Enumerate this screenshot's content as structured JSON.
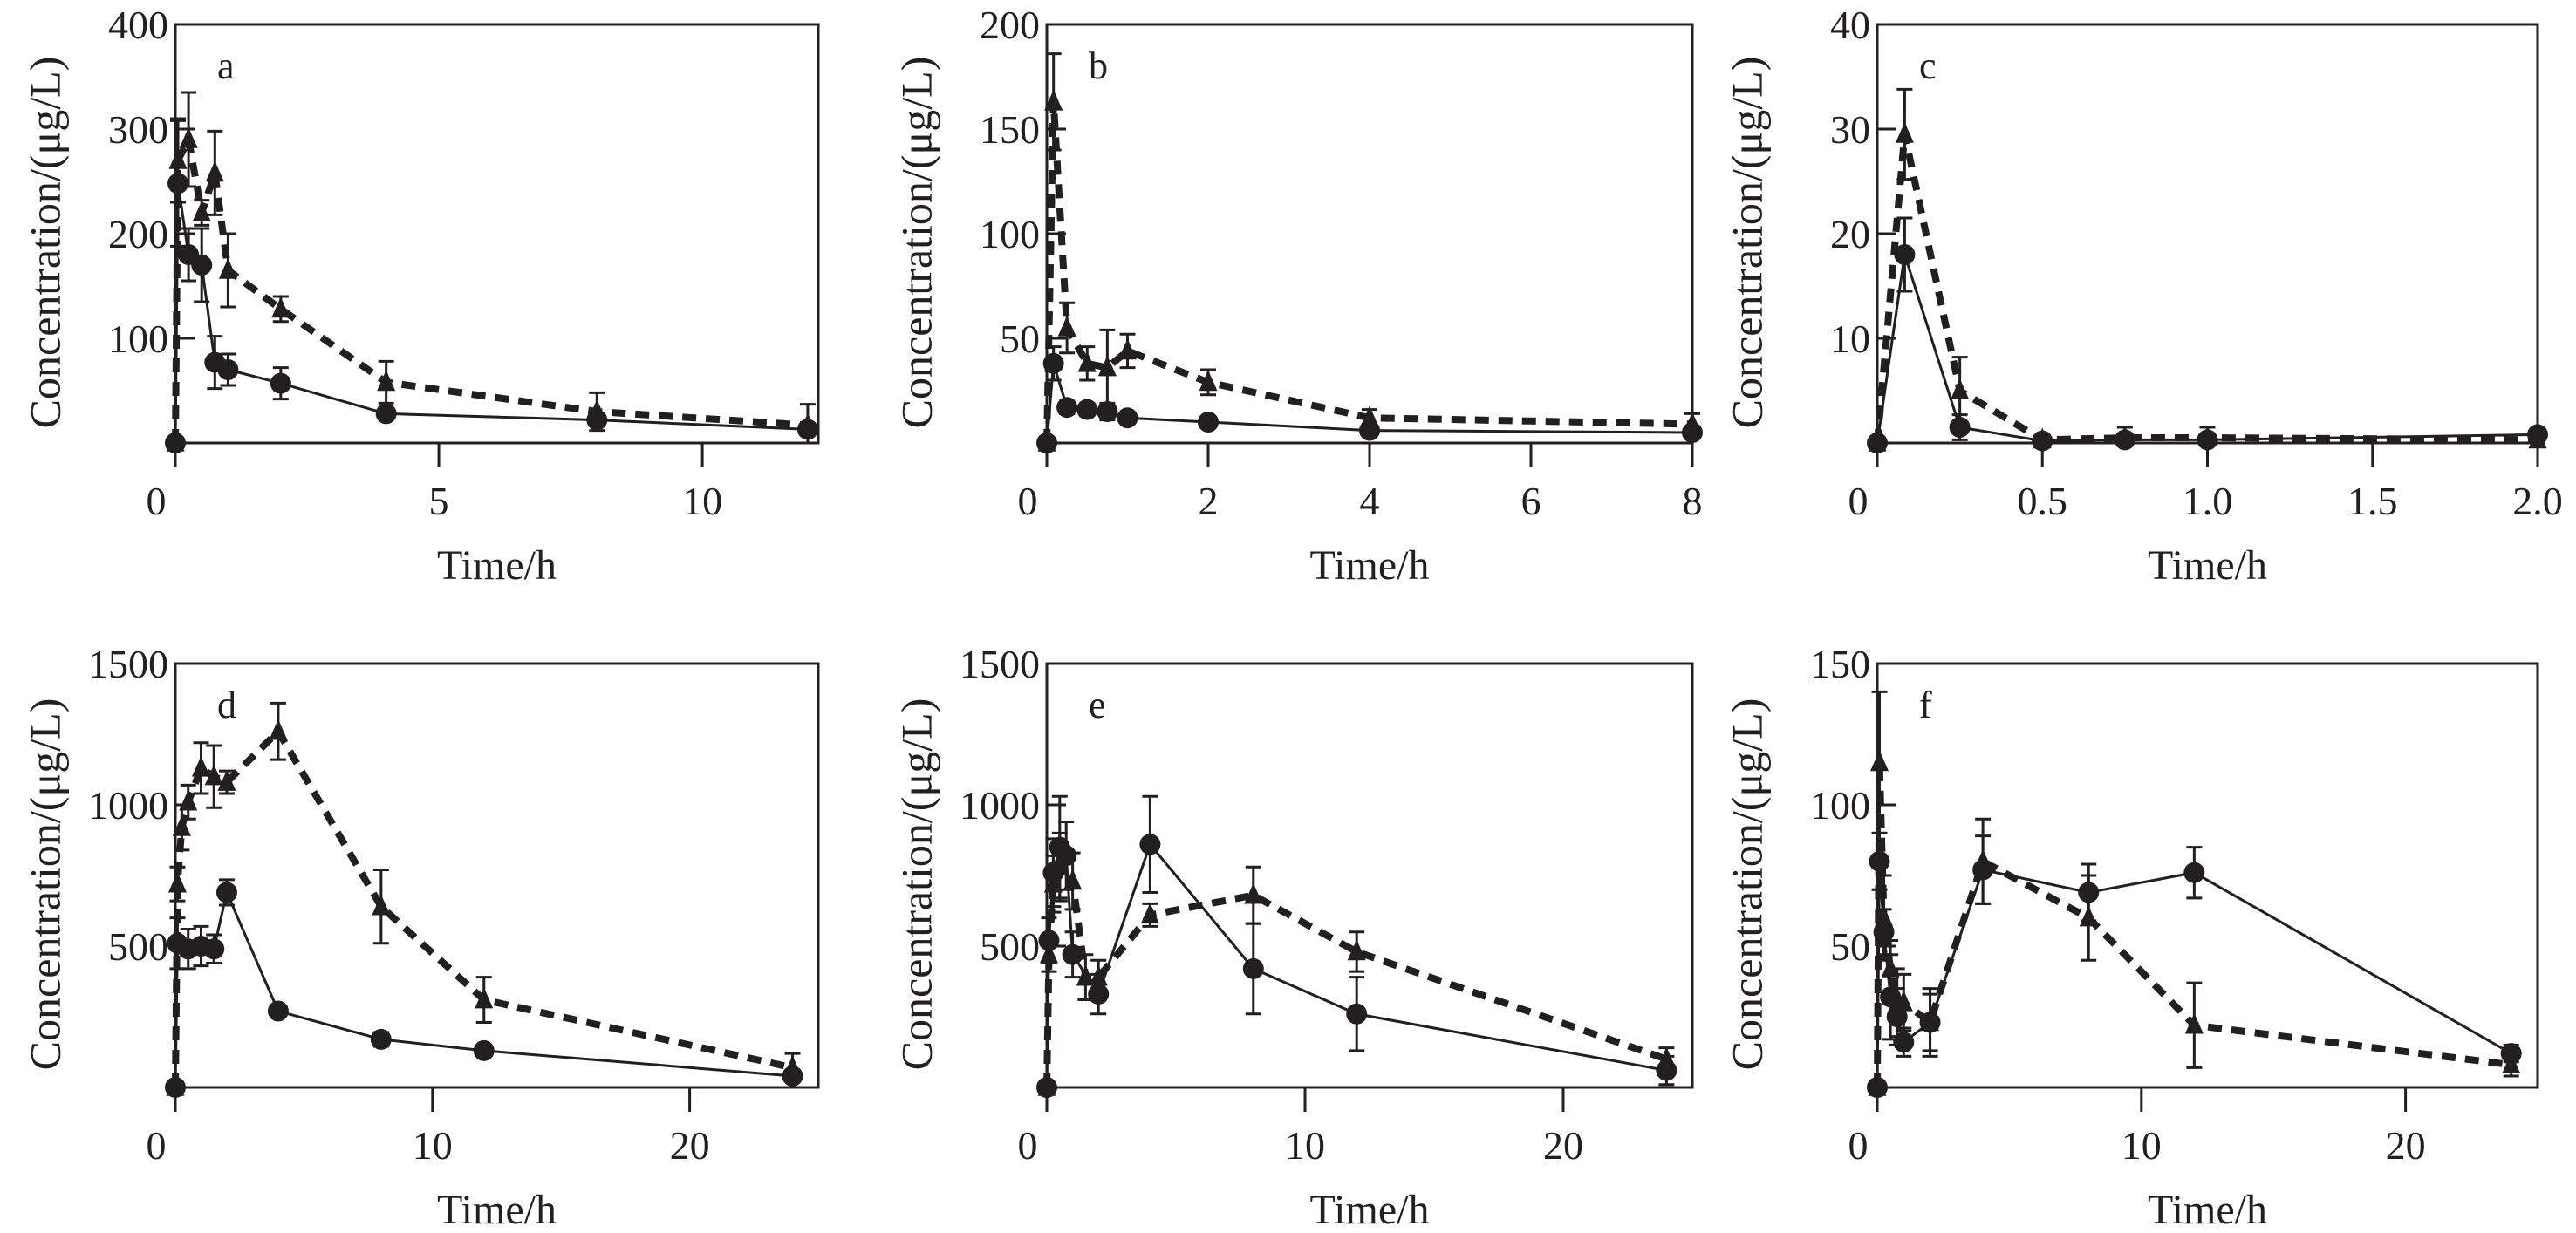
{
  "chart_data": [
    {
      "type": "line",
      "panel": "a",
      "xlabel": "Time/h",
      "ylabel": "Concentration/(μg/L)",
      "xlim": [
        0,
        12.2
      ],
      "ylim": [
        0,
        400
      ],
      "xticks": [
        "0",
        "5",
        "10"
      ],
      "xtick_values": [
        0,
        5,
        10
      ],
      "yticks": [
        "100",
        "200",
        "300",
        "400"
      ],
      "ytick_values": [
        100,
        200,
        300,
        400
      ],
      "series": [
        {
          "name": "circle-solid",
          "marker": "circle",
          "line": "solid",
          "x": [
            0,
            0.05,
            0.25,
            0.5,
            0.75,
            1,
            2,
            4,
            8,
            12
          ],
          "y": [
            0,
            248,
            180,
            170,
            77,
            70,
            57,
            28,
            22,
            13
          ],
          "err": [
            0,
            60,
            25,
            35,
            25,
            15,
            15,
            3,
            5,
            3
          ]
        },
        {
          "name": "triangle-dashed",
          "marker": "triangle",
          "line": "dashed",
          "x": [
            0,
            0.05,
            0.25,
            0.5,
            0.75,
            1,
            2,
            4,
            8,
            12
          ],
          "y": [
            0,
            270,
            290,
            220,
            258,
            165,
            128,
            58,
            30,
            17
          ],
          "err": [
            0,
            40,
            45,
            12,
            40,
            35,
            12,
            20,
            18,
            20
          ]
        }
      ]
    },
    {
      "type": "line",
      "panel": "b",
      "xlabel": "Time/h",
      "ylabel": "Concentration/(μg/L)",
      "xlim": [
        0,
        8
      ],
      "ylim": [
        0,
        200
      ],
      "xticks": [
        "0",
        "2",
        "4",
        "6",
        "8"
      ],
      "xtick_values": [
        0,
        2,
        4,
        6,
        8
      ],
      "yticks": [
        "50",
        "100",
        "150",
        "200"
      ],
      "ytick_values": [
        50,
        100,
        150,
        200
      ],
      "series": [
        {
          "name": "circle-solid",
          "marker": "circle",
          "line": "solid",
          "x": [
            0,
            0.083,
            0.25,
            0.5,
            0.75,
            1,
            2,
            4,
            8
          ],
          "y": [
            0,
            38,
            17,
            16,
            15,
            12,
            10,
            6,
            5
          ],
          "err": [
            0,
            8,
            3,
            3,
            4,
            2,
            2,
            2,
            2
          ]
        },
        {
          "name": "triangle-dashed",
          "marker": "triangle",
          "line": "dashed",
          "x": [
            0,
            0.083,
            0.25,
            0.5,
            0.75,
            1,
            2,
            4,
            8
          ],
          "y": [
            0,
            163,
            55,
            38,
            36,
            44,
            29,
            12,
            9
          ],
          "err": [
            0,
            23,
            12,
            8,
            18,
            8,
            6,
            4,
            5
          ]
        }
      ]
    },
    {
      "type": "line",
      "panel": "c",
      "xlabel": "Time/h",
      "ylabel": "Concentration/(μg/L)",
      "xlim": [
        0,
        2
      ],
      "ylim": [
        0,
        40
      ],
      "xticks": [
        "0",
        "0.5",
        "1.0",
        "1.5",
        "2.0"
      ],
      "xtick_values": [
        0,
        0.5,
        1,
        1.5,
        2
      ],
      "yticks": [
        "10",
        "20",
        "30",
        "40"
      ],
      "ytick_values": [
        10,
        20,
        30,
        40
      ],
      "series": [
        {
          "name": "circle-solid",
          "marker": "circle",
          "line": "solid",
          "x": [
            0,
            0.083,
            0.25,
            0.5,
            0.75,
            1,
            2
          ],
          "y": [
            0,
            18,
            1.5,
            0.2,
            0.3,
            0.3,
            0.8
          ],
          "err": [
            0,
            3.5,
            1.2,
            0.1,
            0.3,
            0.3,
            0.2
          ]
        },
        {
          "name": "triangle-dashed",
          "marker": "triangle",
          "line": "dashed",
          "x": [
            0,
            0.083,
            0.25,
            0.5,
            0.75,
            1,
            2
          ],
          "y": [
            0,
            29.5,
            5,
            0.3,
            0.5,
            0.5,
            0.3
          ],
          "err": [
            0,
            4.3,
            3.2,
            0.2,
            1,
            1,
            0.2
          ]
        }
      ]
    },
    {
      "type": "line",
      "panel": "d",
      "xlabel": "Time/h",
      "ylabel": "Concentration/(μg/L)",
      "xlim": [
        0,
        25
      ],
      "ylim": [
        0,
        1500
      ],
      "xticks": [
        "0",
        "10",
        "20"
      ],
      "xtick_values": [
        0,
        10,
        20
      ],
      "yticks": [
        "500",
        "1000",
        "1500"
      ],
      "ytick_values": [
        500,
        1000,
        1500
      ],
      "series": [
        {
          "name": "circle-solid",
          "marker": "circle",
          "line": "solid",
          "x": [
            0,
            0.083,
            0.5,
            1,
            1.5,
            2,
            4,
            8,
            12,
            24
          ],
          "y": [
            0,
            510,
            490,
            500,
            490,
            690,
            270,
            170,
            130,
            40
          ],
          "err": [
            0,
            90,
            70,
            70,
            50,
            45,
            10,
            25,
            15,
            10
          ]
        },
        {
          "name": "triangle-dashed",
          "marker": "triangle",
          "line": "dashed",
          "x": [
            0,
            0.083,
            0.25,
            0.5,
            1,
            1.5,
            2,
            4,
            8,
            12,
            24
          ],
          "y": [
            0,
            720,
            920,
            1010,
            1130,
            1100,
            1080,
            1260,
            640,
            310,
            70
          ],
          "err": [
            0,
            60,
            80,
            60,
            90,
            110,
            40,
            100,
            130,
            80,
            50
          ]
        }
      ]
    },
    {
      "type": "line",
      "panel": "e",
      "xlabel": "Time/h",
      "ylabel": "Concentration/(μg/L)",
      "xlim": [
        0,
        25
      ],
      "ylim": [
        0,
        1500
      ],
      "xticks": [
        "0",
        "10",
        "20"
      ],
      "xtick_values": [
        0,
        10,
        20
      ],
      "yticks": [
        "500",
        "1000",
        "1500"
      ],
      "ytick_values": [
        500,
        1000,
        1500
      ],
      "series": [
        {
          "name": "circle-solid",
          "marker": "circle",
          "line": "solid",
          "x": [
            0,
            0.083,
            0.25,
            0.5,
            0.75,
            1,
            2,
            4,
            8,
            12,
            24
          ],
          "y": [
            0,
            520,
            760,
            850,
            820,
            470,
            330,
            860,
            420,
            260,
            60
          ],
          "err": [
            0,
            80,
            120,
            180,
            120,
            80,
            70,
            170,
            160,
            130,
            50
          ]
        },
        {
          "name": "triangle-dashed",
          "marker": "triangle",
          "line": "dashed",
          "x": [
            0,
            0.083,
            0.25,
            0.5,
            1,
            1.5,
            2,
            4,
            8,
            12,
            24
          ],
          "y": [
            0,
            470,
            720,
            780,
            730,
            390,
            390,
            610,
            680,
            480,
            100
          ],
          "err": [
            0,
            60,
            100,
            120,
            100,
            80,
            60,
            40,
            100,
            70,
            40
          ]
        }
      ]
    },
    {
      "type": "line",
      "panel": "f",
      "xlabel": "Time/h",
      "ylabel": "Concentration/(μg/L)",
      "xlim": [
        0,
        25
      ],
      "ylim": [
        0,
        150
      ],
      "xticks": [
        "0",
        "10",
        "20"
      ],
      "xtick_values": [
        0,
        10,
        20
      ],
      "yticks": [
        "50",
        "100",
        "150"
      ],
      "ytick_values": [
        50,
        100,
        150
      ],
      "series": [
        {
          "name": "circle-solid",
          "marker": "circle",
          "line": "solid",
          "x": [
            0,
            0.083,
            0.25,
            0.5,
            0.75,
            1,
            2,
            4,
            8,
            12,
            24
          ],
          "y": [
            0,
            80,
            55,
            32,
            25,
            16,
            23,
            77,
            69,
            76,
            12
          ],
          "err": [
            0,
            10,
            8,
            15,
            10,
            5,
            10,
            12,
            10,
            9,
            3
          ]
        },
        {
          "name": "triangle-dashed",
          "marker": "triangle",
          "line": "dashed",
          "x": [
            0,
            0.083,
            0.25,
            0.5,
            0.75,
            1,
            2,
            4,
            8,
            12,
            24
          ],
          "y": [
            0,
            115,
            60,
            42,
            30,
            30,
            23,
            80,
            60,
            22,
            8
          ],
          "err": [
            0,
            25,
            15,
            10,
            12,
            10,
            12,
            15,
            15,
            15,
            4
          ]
        }
      ]
    }
  ]
}
